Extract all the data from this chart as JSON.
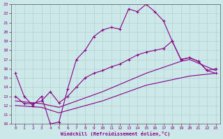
{
  "xlabel": "Windchill (Refroidissement éolien,°C)",
  "bg_color": "#cce8e8",
  "line_color": "#880088",
  "xlim": [
    -0.5,
    23.5
  ],
  "ylim": [
    10,
    23
  ],
  "xticks": [
    0,
    1,
    2,
    3,
    4,
    5,
    6,
    7,
    8,
    9,
    10,
    11,
    12,
    13,
    14,
    15,
    16,
    17,
    18,
    19,
    20,
    21,
    22,
    23
  ],
  "yticks": [
    10,
    11,
    12,
    13,
    14,
    15,
    16,
    17,
    18,
    19,
    20,
    21,
    22,
    23
  ],
  "line1_x": [
    0,
    1,
    2,
    3,
    4,
    5,
    6,
    7,
    8,
    9,
    10,
    11,
    12,
    13,
    14,
    15,
    16,
    17,
    18,
    19,
    20,
    21,
    22,
    23
  ],
  "line1_y": [
    15.5,
    13.0,
    12.0,
    13.0,
    10.0,
    10.2,
    13.8,
    17.0,
    18.0,
    19.5,
    20.2,
    20.5,
    20.3,
    22.5,
    22.2,
    23.0,
    22.2,
    21.2,
    19.0,
    17.0,
    17.2,
    16.8,
    15.8,
    15.5
  ],
  "line2_x": [
    0,
    1,
    2,
    3,
    4,
    5,
    6,
    7,
    8,
    9,
    10,
    11,
    12,
    13,
    14,
    15,
    16,
    17,
    18,
    19,
    20,
    21,
    22,
    23
  ],
  "line2_y": [
    13.0,
    12.2,
    12.2,
    12.5,
    13.5,
    12.3,
    13.0,
    14.0,
    15.0,
    15.5,
    15.8,
    16.2,
    16.5,
    17.0,
    17.5,
    17.8,
    18.0,
    18.2,
    19.0,
    17.0,
    17.2,
    16.8,
    15.8,
    16.0
  ],
  "line3_x": [
    0,
    3,
    5,
    10,
    15,
    19,
    20,
    23
  ],
  "line3_y": [
    12.5,
    12.2,
    11.8,
    13.5,
    15.5,
    16.8,
    17.0,
    15.8
  ],
  "line4_x": [
    0,
    3,
    5,
    10,
    15,
    20,
    23
  ],
  "line4_y": [
    12.0,
    11.8,
    11.2,
    12.5,
    14.2,
    15.2,
    15.5
  ]
}
